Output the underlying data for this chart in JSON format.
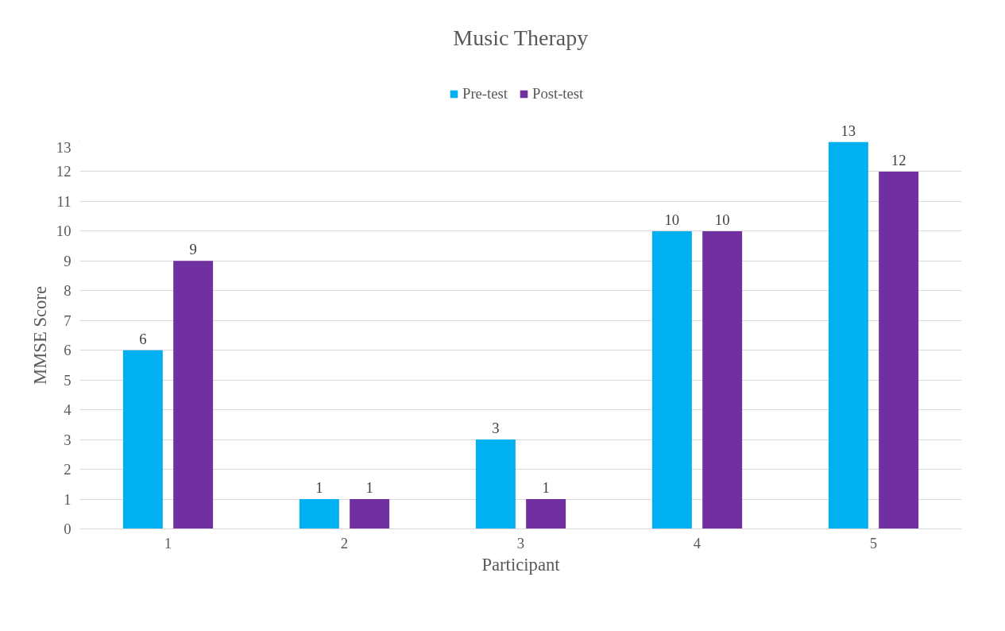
{
  "chart_data": {
    "type": "bar",
    "title": "Music Therapy",
    "xlabel": "Participant",
    "ylabel": "MMSE Score",
    "categories": [
      "1",
      "2",
      "3",
      "4",
      "5"
    ],
    "series": [
      {
        "name": "Pre-test",
        "color": "#00b0f0",
        "values": [
          6,
          1,
          3,
          10,
          13
        ]
      },
      {
        "name": "Post-test",
        "color": "#7030a0",
        "values": [
          9,
          1,
          1,
          10,
          12
        ]
      }
    ],
    "ylim": [
      0,
      13
    ],
    "yticks": [
      0,
      1,
      2,
      3,
      4,
      5,
      6,
      7,
      8,
      9,
      10,
      11,
      12,
      13
    ],
    "grid": "y",
    "legend": "top",
    "data_labels": true
  }
}
